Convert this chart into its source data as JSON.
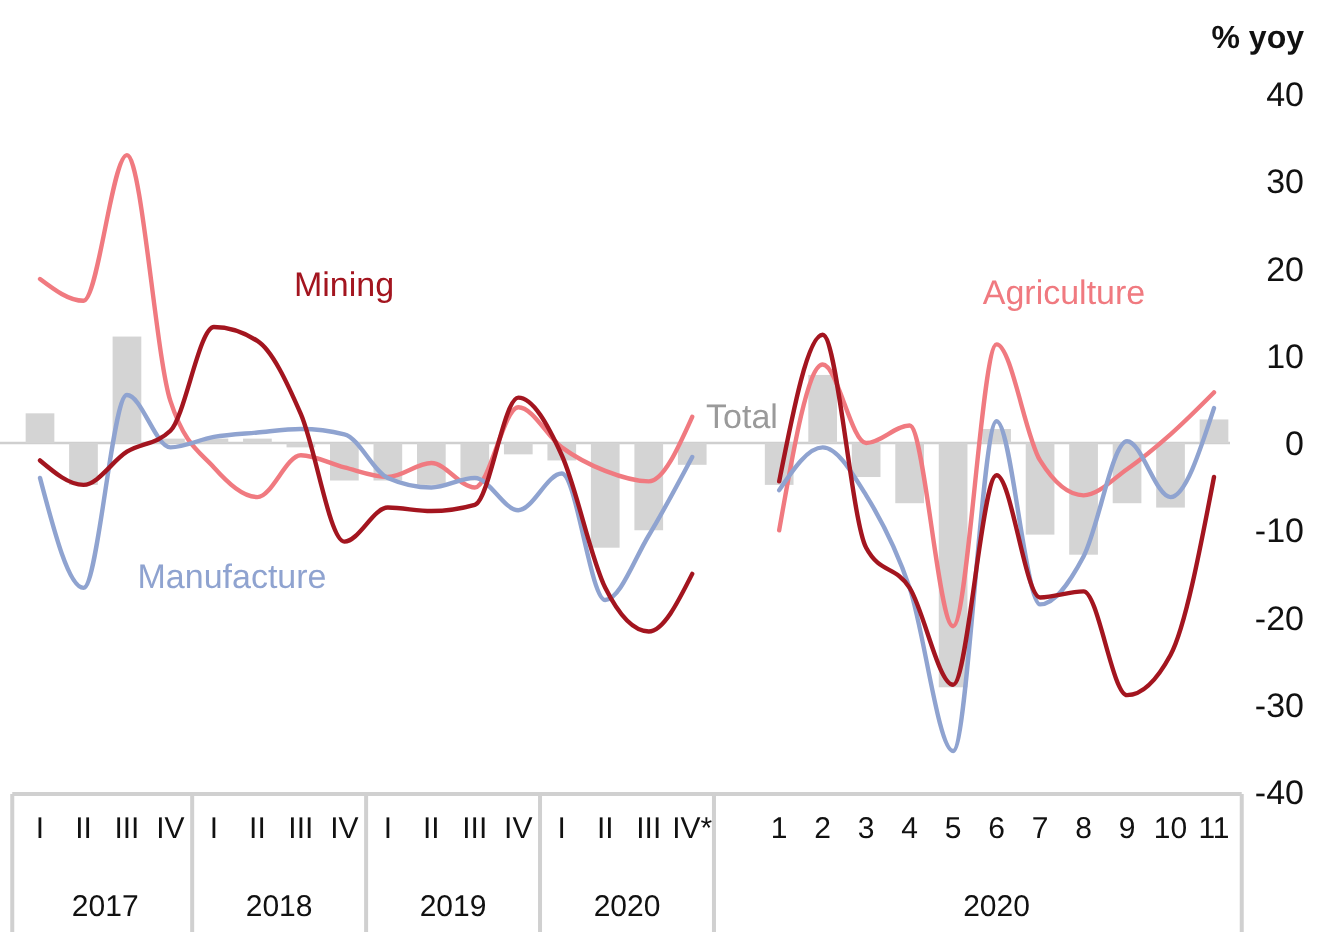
{
  "chart_data": {
    "type": "bar",
    "ylabel": "% yoy",
    "categories": [
      "I",
      "II",
      "III",
      "IV",
      "I",
      "II",
      "III",
      "IV",
      "I",
      "II",
      "III",
      "IV",
      "I",
      "II",
      "III",
      "IV*",
      null,
      "1",
      "2",
      "3",
      "4",
      "5",
      "6",
      "7",
      "8",
      "9",
      "10",
      "11"
    ],
    "annotations": [
      "2017",
      "2018",
      "2019",
      "2020",
      "2020"
    ],
    "series": [
      {
        "name": "Total",
        "color": "#d4d4d4",
        "values": [
          3.4,
          -4.8,
          12.2,
          0.5,
          0.5,
          0.5,
          -0.5,
          -4.3,
          -4.3,
          -4.8,
          -4.3,
          -1.3,
          -2,
          -12,
          -10,
          -2.5,
          null,
          -4.8,
          7.8,
          -3.9,
          -6.9,
          -28,
          1.6,
          -10.5,
          -12.8,
          -6.9,
          -7.4,
          2.7
        ]
      },
      {
        "name": "Agriculture",
        "type": "line",
        "color": "#f07a80",
        "values": [
          18.8,
          16.3,
          33,
          4.8,
          -2.8,
          -6.2,
          -1.4,
          -2.8,
          -3.9,
          -2.3,
          -5.1,
          4.1,
          -0.5,
          -3.2,
          -4.4,
          3,
          null,
          -10,
          9,
          0,
          2,
          -21,
          11.3,
          -2,
          -6,
          -3,
          1,
          5.8
        ]
      },
      {
        "name": "Manufacture",
        "type": "line",
        "color": "#8fa3d0",
        "values": [
          -4,
          -16.6,
          5.5,
          -0.5,
          0.7,
          1.2,
          1.6,
          1,
          -4,
          -5.1,
          -4,
          -7.7,
          -3.5,
          -18,
          -10.6,
          -1.6,
          null,
          -5.4,
          -0.5,
          -6,
          -16.6,
          -35.3,
          2.5,
          -18.5,
          -13,
          0.2,
          -6.2,
          4
        ]
      },
      {
        "name": "Mining",
        "type": "line",
        "color": "#a3151f",
        "values": [
          -2,
          -4.8,
          -1,
          1.4,
          13.3,
          11.7,
          3.3,
          -11.3,
          -7.4,
          -7.8,
          -7.1,
          5.2,
          -1.4,
          -16.6,
          -21.6,
          -15,
          null,
          -4.4,
          12.4,
          -12,
          -16.6,
          -27.7,
          -3.7,
          -17.7,
          -17,
          -28.9,
          -24.3,
          -3.9
        ]
      }
    ],
    "ylim": [
      -40,
      40
    ],
    "yticks": [
      -40,
      -30,
      -20,
      -10,
      0,
      10,
      20,
      30,
      40
    ]
  }
}
